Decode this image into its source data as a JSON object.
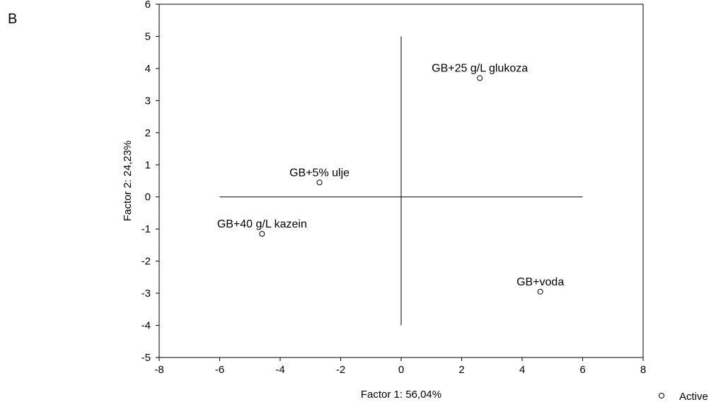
{
  "panel_label": "B",
  "chart_data": {
    "type": "scatter",
    "xlabel": "Factor 1: 56,04%",
    "ylabel": "Factor 2: 24,23%",
    "xlim": [
      -8,
      8
    ],
    "ylim": [
      -5,
      6
    ],
    "xticks": [
      -8,
      -6,
      -4,
      -2,
      0,
      2,
      4,
      6,
      8
    ],
    "yticks": [
      -5,
      -4,
      -3,
      -2,
      -1,
      0,
      1,
      2,
      3,
      4,
      5,
      6
    ],
    "reference_lines": {
      "horizontal": {
        "y": 0,
        "x_from": -6,
        "x_to": 6
      },
      "vertical": {
        "x": 0,
        "y_from": -4,
        "y_to": 5
      }
    },
    "points": [
      {
        "label": "GB+25 g/L glukoza",
        "x": 2.6,
        "y": 3.7
      },
      {
        "label": "GB+5% ulje",
        "x": -2.7,
        "y": 0.45
      },
      {
        "label": "GB+40 g/L kazein",
        "x": -4.6,
        "y": -1.15
      },
      {
        "label": "GB+voda",
        "x": 4.6,
        "y": -2.95
      }
    ],
    "legend": {
      "entries": [
        "Active"
      ],
      "position": "bottom-right"
    },
    "grid": false
  }
}
